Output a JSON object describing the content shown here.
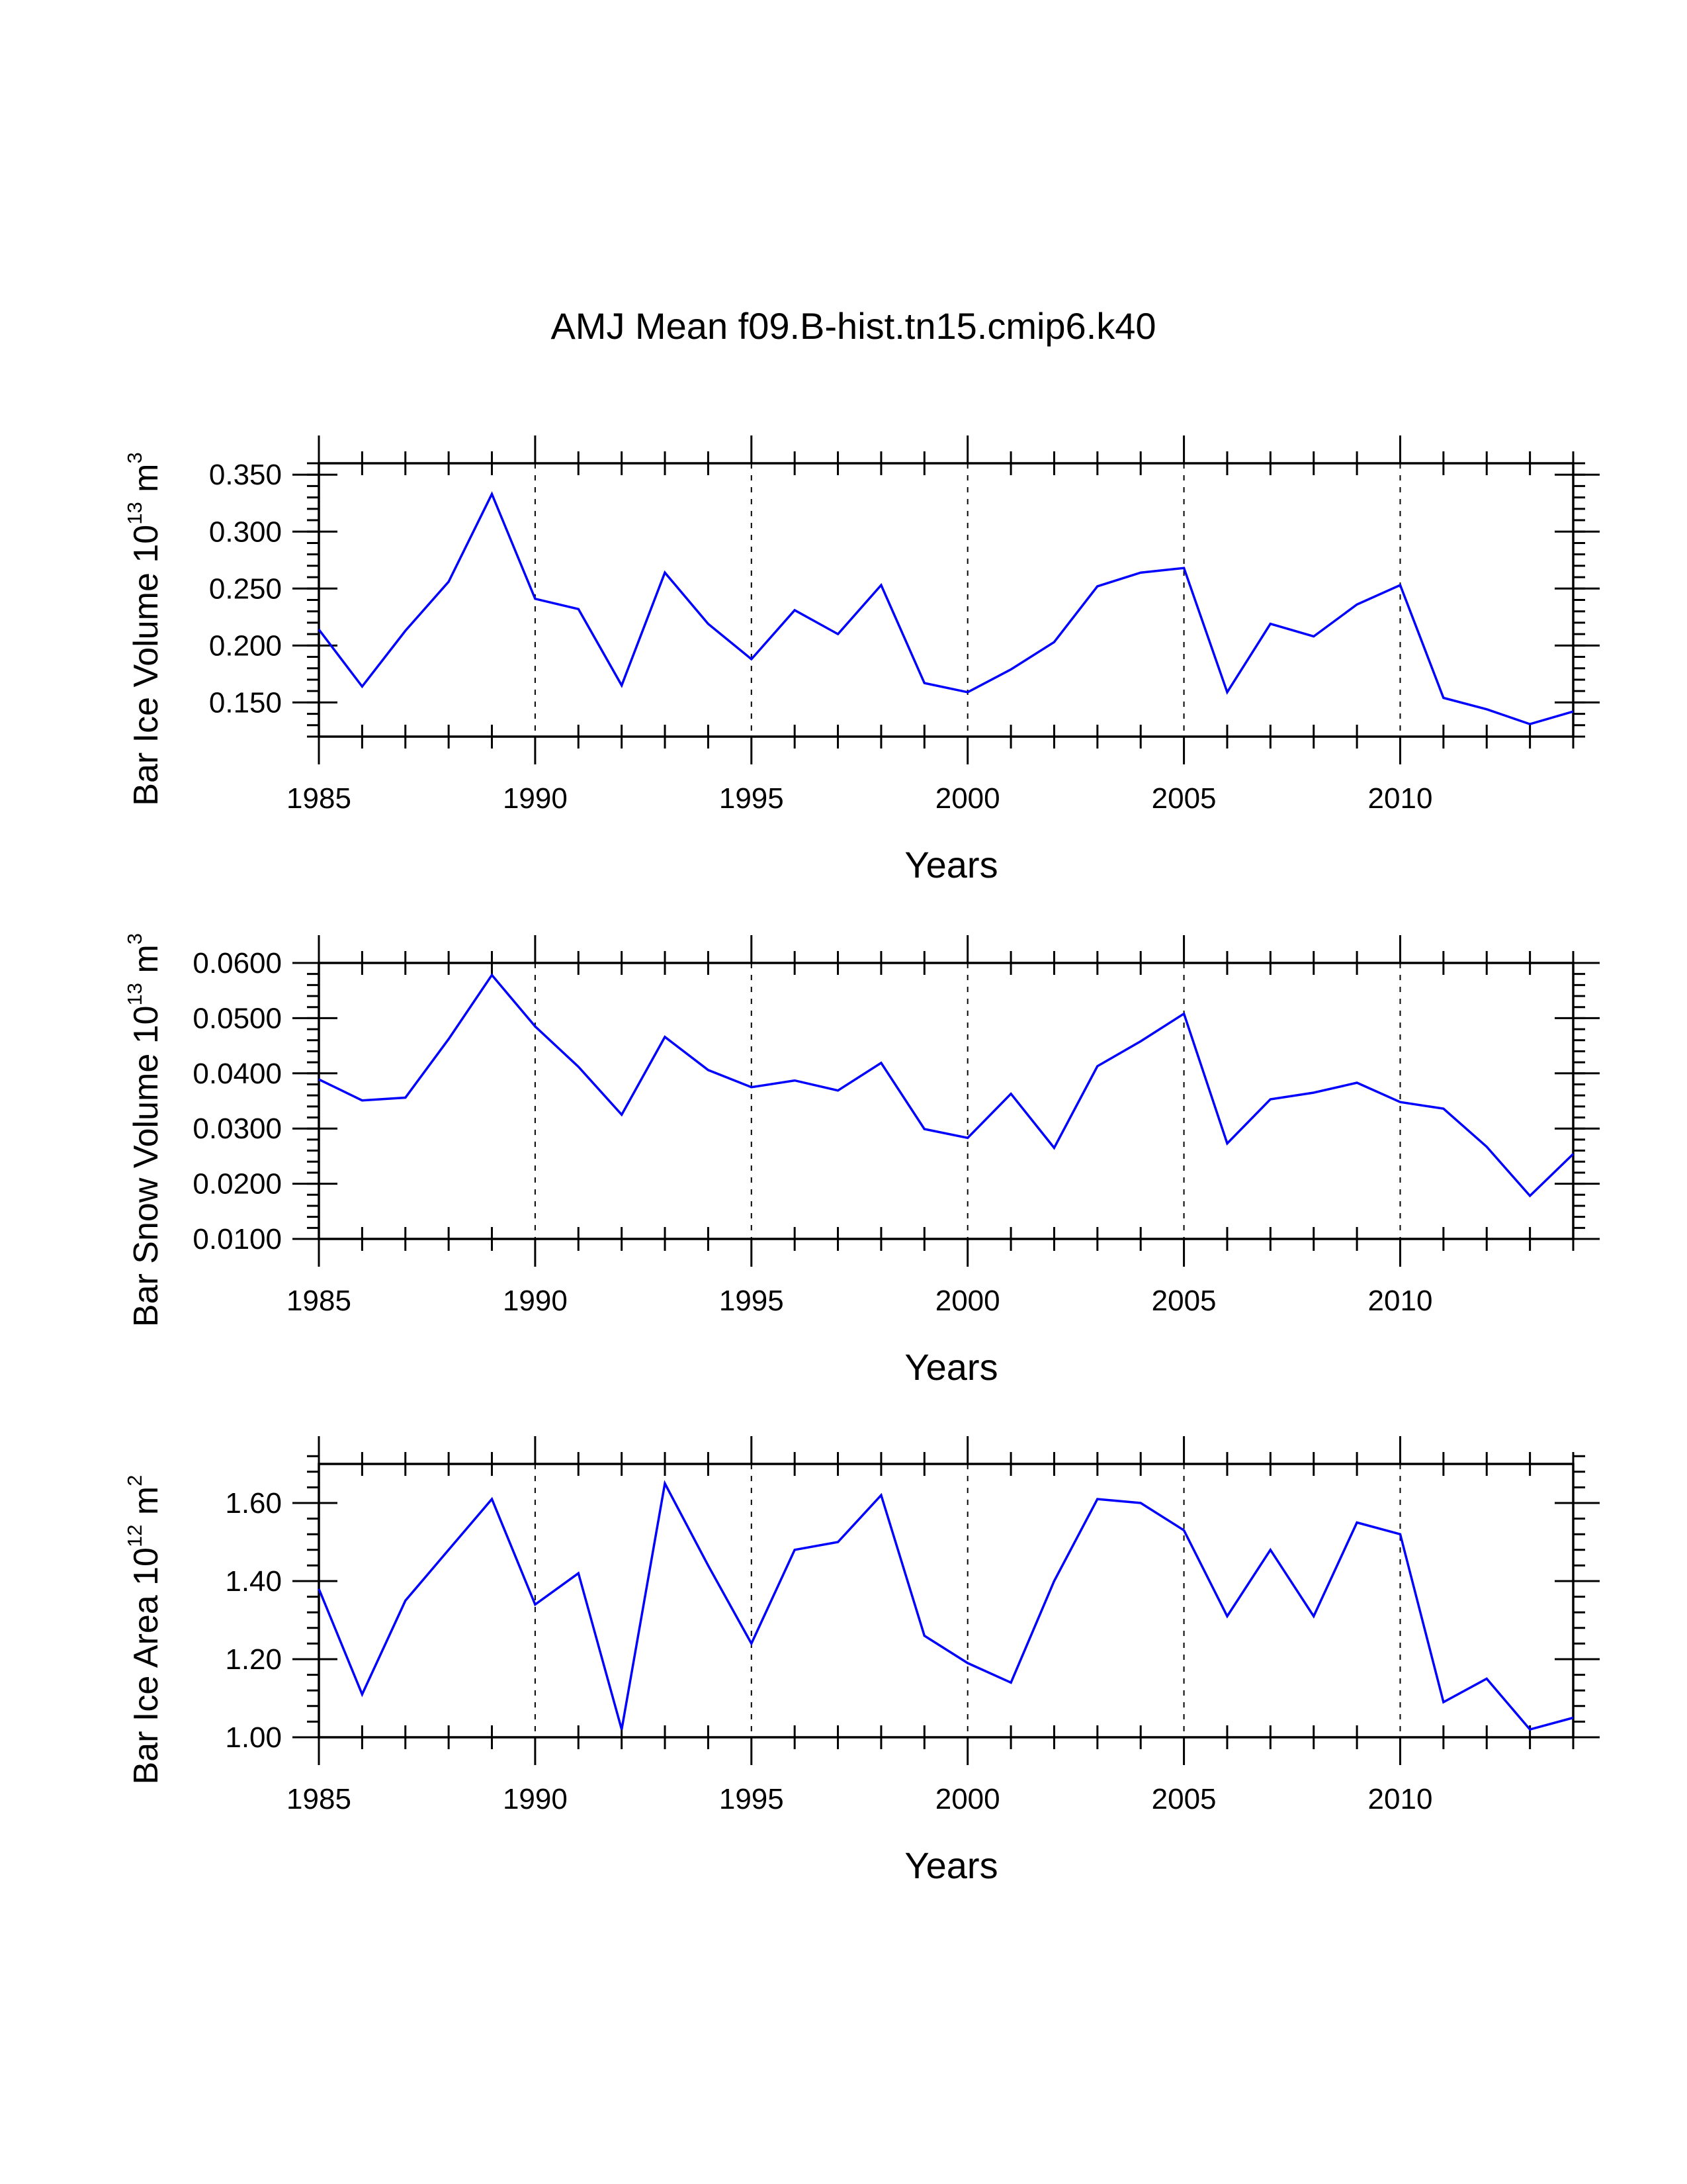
{
  "figure_title": "AMJ Mean f09.B-hist.tn15.cmip6.k40",
  "colors": {
    "line": "#0000ff",
    "axes": "#000000"
  },
  "chart_data": [
    {
      "type": "line",
      "id": "ice-volume",
      "xlabel": "Years",
      "ylabel_main": "Bar Ice Volume 10",
      "ylabel_exp": "13",
      "ylabel_unit": " m",
      "ylabel_unit_exp": "3",
      "xlim": [
        1985,
        2014
      ],
      "ylim": [
        0.12,
        0.36
      ],
      "x_ticks": [
        1985,
        1990,
        1995,
        2000,
        2005,
        2010
      ],
      "y_ticks": [
        0.15,
        0.2,
        0.25,
        0.3,
        0.35
      ],
      "y_tick_labels": [
        "0.150",
        "0.200",
        "0.250",
        "0.300",
        "0.350"
      ],
      "y_minor_step": 0.01,
      "grid_x": [
        1990,
        1995,
        2000,
        2005,
        2010
      ],
      "x": [
        1985,
        1986,
        1987,
        1988,
        1989,
        1990,
        1991,
        1992,
        1993,
        1994,
        1995,
        1996,
        1997,
        1998,
        1999,
        2000,
        2001,
        2002,
        2003,
        2004,
        2005,
        2006,
        2007,
        2008,
        2009,
        2010,
        2011,
        2012,
        2013,
        2014
      ],
      "values": [
        0.214,
        0.164,
        0.213,
        0.256,
        0.333,
        0.241,
        0.232,
        0.165,
        0.264,
        0.219,
        0.188,
        0.231,
        0.21,
        0.253,
        0.167,
        0.159,
        0.179,
        0.203,
        0.252,
        0.264,
        0.268,
        0.159,
        0.219,
        0.208,
        0.236,
        0.253,
        0.154,
        0.144,
        0.131,
        0.142
      ]
    },
    {
      "type": "line",
      "id": "snow-volume",
      "xlabel": "Years",
      "ylabel_main": "Bar Snow Volume 10",
      "ylabel_exp": "13",
      "ylabel_unit": " m",
      "ylabel_unit_exp": "3",
      "xlim": [
        1985,
        2014
      ],
      "ylim": [
        0.01,
        0.06
      ],
      "x_ticks": [
        1985,
        1990,
        1995,
        2000,
        2005,
        2010
      ],
      "y_ticks": [
        0.01,
        0.02,
        0.03,
        0.04,
        0.05,
        0.06
      ],
      "y_tick_labels": [
        "0.0100",
        "0.0200",
        "0.0300",
        "0.0400",
        "0.0500",
        "0.0600"
      ],
      "y_minor_step": 0.002,
      "grid_x": [
        1990,
        1995,
        2000,
        2005,
        2010
      ],
      "x": [
        1985,
        1986,
        1987,
        1988,
        1989,
        1990,
        1991,
        1992,
        1993,
        1994,
        1995,
        1996,
        1997,
        1998,
        1999,
        2000,
        2001,
        2002,
        2003,
        2004,
        2005,
        2006,
        2007,
        2008,
        2009,
        2010,
        2011,
        2012,
        2013,
        2014
      ],
      "values": [
        0.0389,
        0.0351,
        0.0356,
        0.0462,
        0.0578,
        0.0485,
        0.0412,
        0.0325,
        0.0466,
        0.0406,
        0.0375,
        0.0387,
        0.0369,
        0.0419,
        0.0299,
        0.0283,
        0.0363,
        0.0265,
        0.0413,
        0.0458,
        0.0508,
        0.0273,
        0.0353,
        0.0365,
        0.0383,
        0.0348,
        0.0336,
        0.0267,
        0.0178,
        0.0254
      ]
    },
    {
      "type": "line",
      "id": "ice-area",
      "xlabel": "Years",
      "ylabel_main": "Bar Ice Area 10",
      "ylabel_exp": "12",
      "ylabel_unit": " m",
      "ylabel_unit_exp": "2",
      "xlim": [
        1985,
        2014
      ],
      "ylim": [
        1.0,
        1.7
      ],
      "x_ticks": [
        1985,
        1990,
        1995,
        2000,
        2005,
        2010
      ],
      "y_ticks": [
        1.0,
        1.2,
        1.4,
        1.6
      ],
      "y_tick_labels": [
        "1.00",
        "1.20",
        "1.40",
        "1.60"
      ],
      "y_minor_step": 0.04,
      "grid_x": [
        1990,
        1995,
        2000,
        2005,
        2010
      ],
      "x": [
        1985,
        1986,
        1987,
        1988,
        1989,
        1990,
        1991,
        1992,
        1993,
        1994,
        1995,
        1996,
        1997,
        1998,
        1999,
        2000,
        2001,
        2002,
        2003,
        2004,
        2005,
        2006,
        2007,
        2008,
        2009,
        2010,
        2011,
        2012,
        2013,
        2014
      ],
      "values": [
        1.38,
        1.11,
        1.35,
        1.48,
        1.61,
        1.34,
        1.42,
        1.02,
        1.65,
        1.44,
        1.24,
        1.48,
        1.5,
        1.62,
        1.26,
        1.19,
        1.14,
        1.4,
        1.61,
        1.6,
        1.53,
        1.31,
        1.48,
        1.31,
        1.55,
        1.52,
        1.09,
        1.15,
        1.02,
        1.05
      ]
    }
  ]
}
